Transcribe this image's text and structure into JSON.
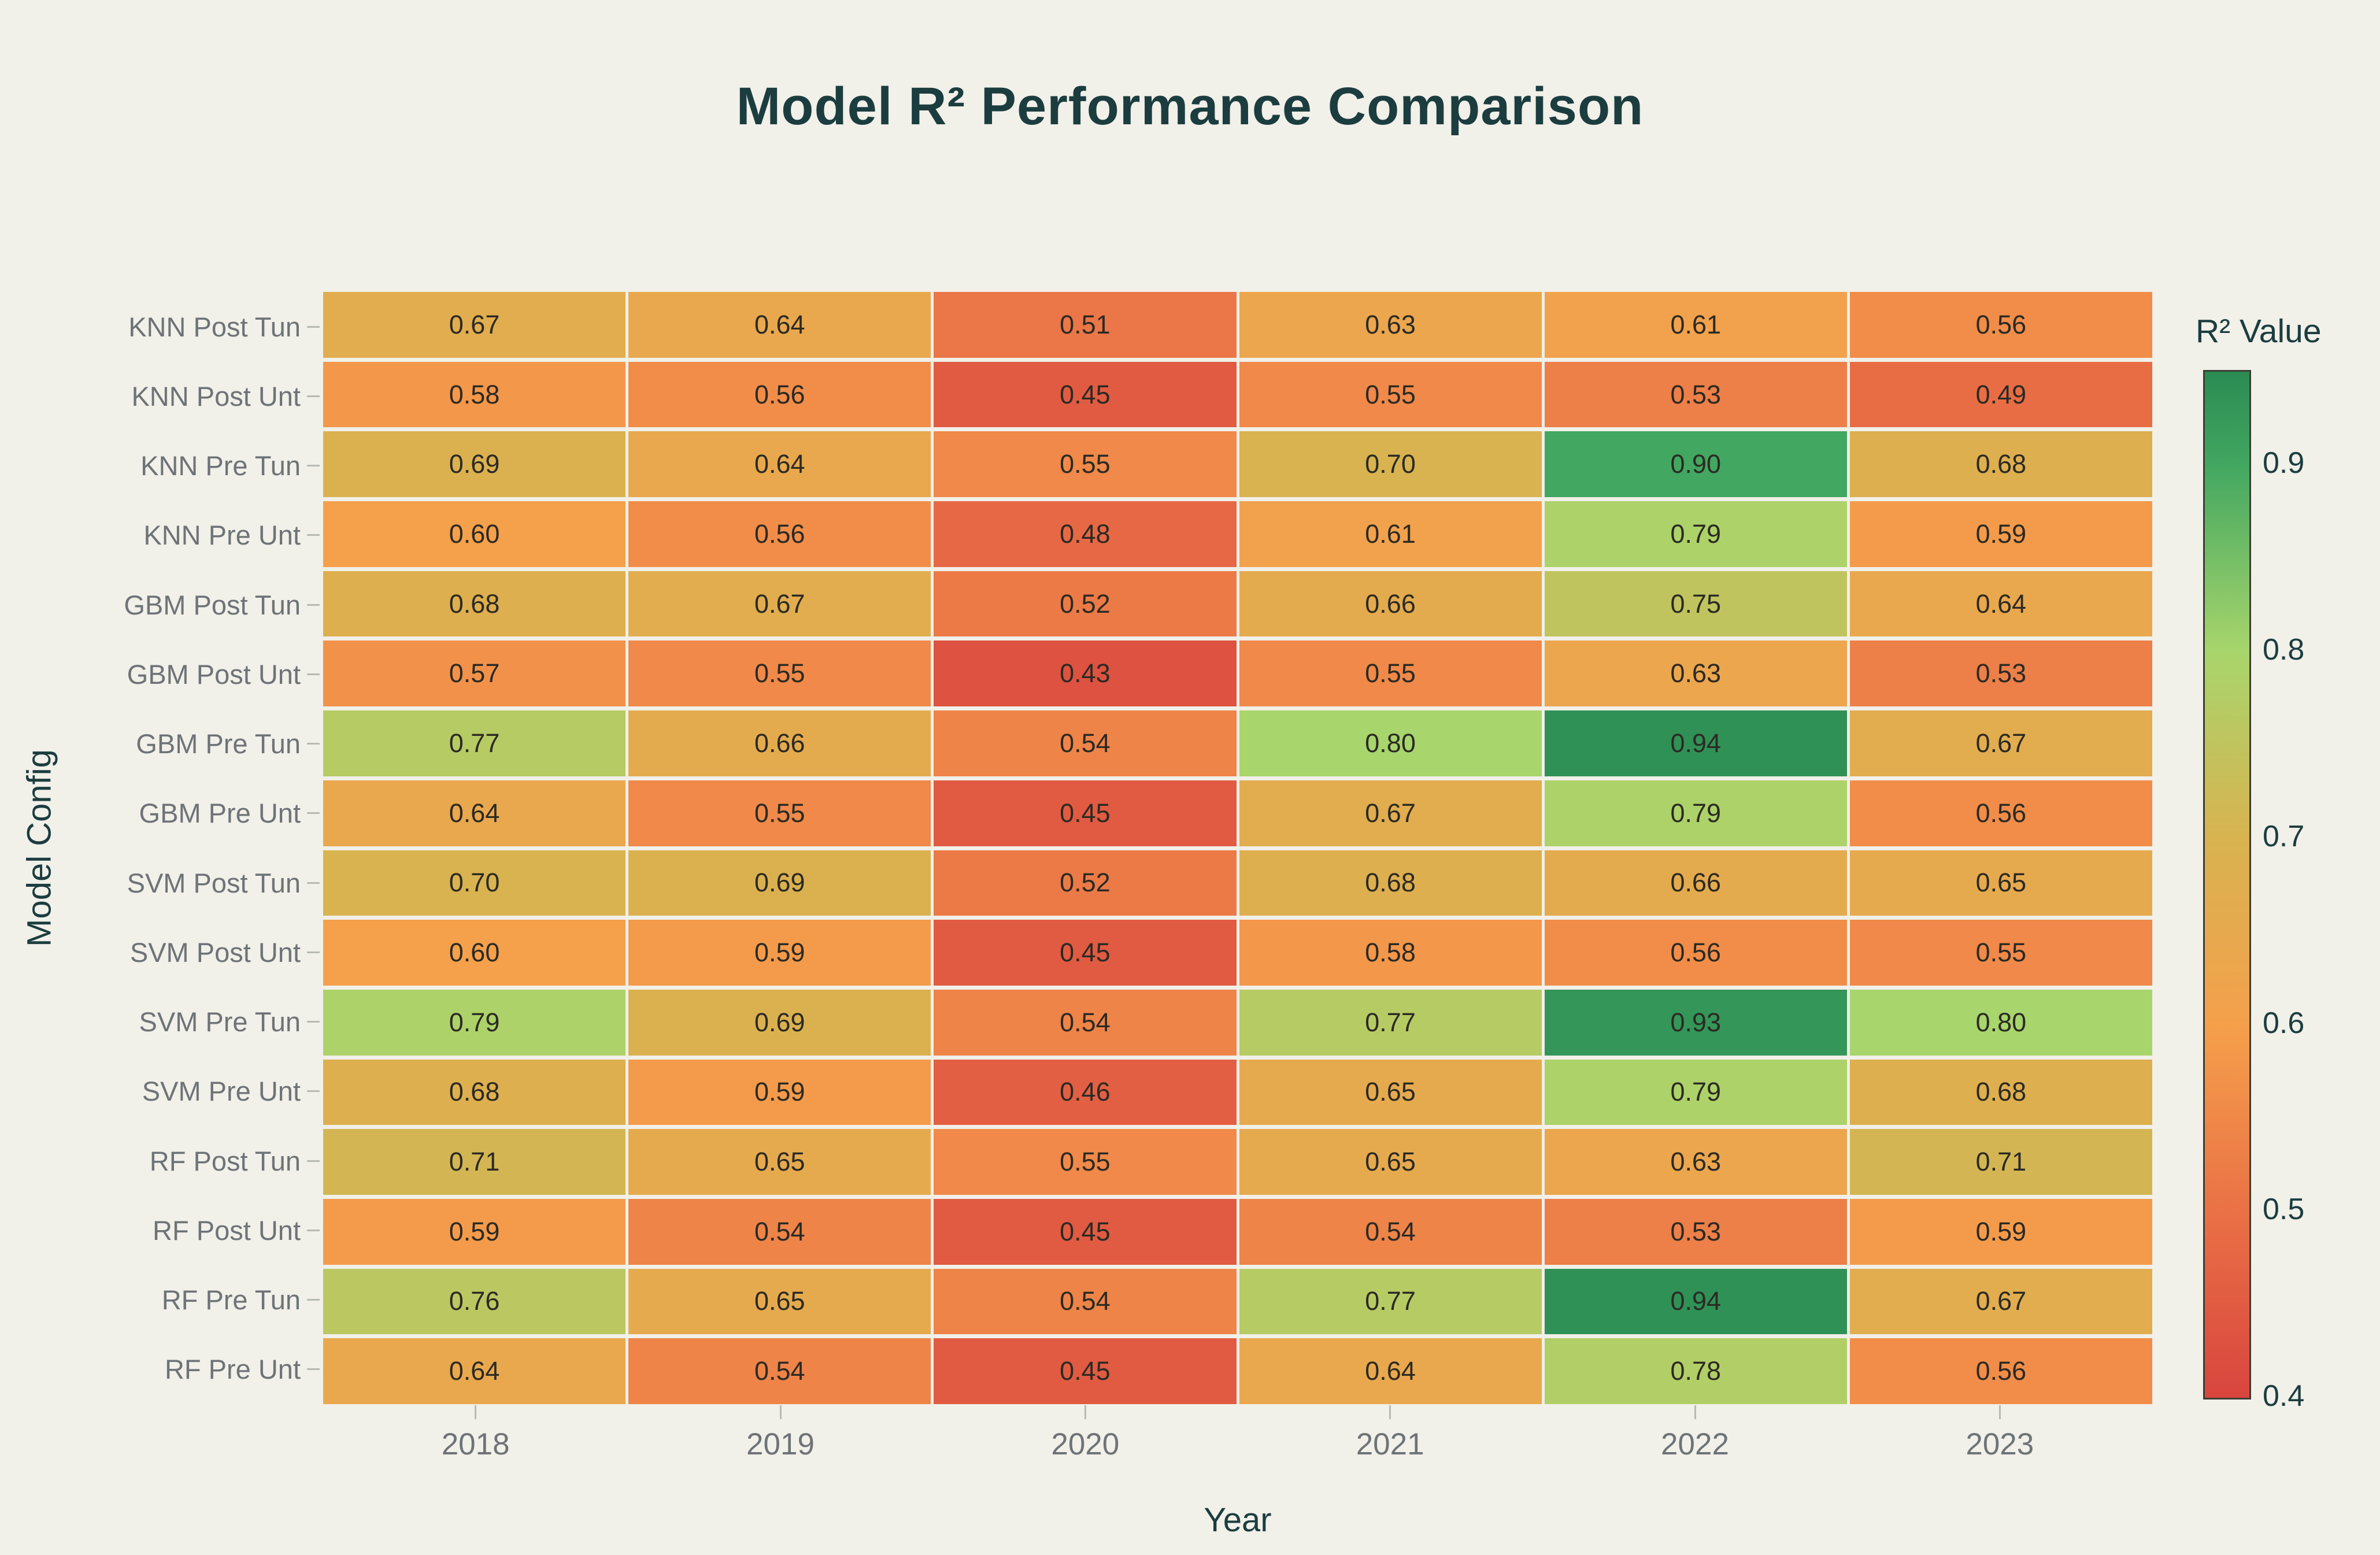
{
  "page": {
    "background": "#f1f0e9"
  },
  "chart_data": {
    "type": "heatmap",
    "title": "Model R² Performance Comparison",
    "xlabel": "Year",
    "ylabel": "Model Config",
    "x_categories": [
      "2018",
      "2019",
      "2020",
      "2021",
      "2022",
      "2023"
    ],
    "y_categories": [
      "KNN Post Tun",
      "KNN Post Unt",
      "KNN Pre Tun",
      "KNN Pre Unt",
      "GBM Post Tun",
      "GBM Post Unt",
      "GBM Pre Tun",
      "GBM Pre Unt",
      "SVM Post Tun",
      "SVM Post Unt",
      "SVM Pre Tun",
      "SVM Pre Unt",
      "RF Post Tun",
      "RF Post Unt",
      "RF Pre Tun",
      "RF Pre Unt"
    ],
    "values": [
      [
        0.67,
        0.64,
        0.51,
        0.63,
        0.61,
        0.56
      ],
      [
        0.58,
        0.56,
        0.45,
        0.55,
        0.53,
        0.49
      ],
      [
        0.69,
        0.64,
        0.55,
        0.7,
        0.9,
        0.68
      ],
      [
        0.6,
        0.56,
        0.48,
        0.61,
        0.79,
        0.59
      ],
      [
        0.68,
        0.67,
        0.52,
        0.66,
        0.75,
        0.64
      ],
      [
        0.57,
        0.55,
        0.43,
        0.55,
        0.63,
        0.53
      ],
      [
        0.77,
        0.66,
        0.54,
        0.8,
        0.94,
        0.67
      ],
      [
        0.64,
        0.55,
        0.45,
        0.67,
        0.79,
        0.56
      ],
      [
        0.7,
        0.69,
        0.52,
        0.68,
        0.66,
        0.65
      ],
      [
        0.6,
        0.59,
        0.45,
        0.58,
        0.56,
        0.55
      ],
      [
        0.79,
        0.69,
        0.54,
        0.77,
        0.93,
        0.8
      ],
      [
        0.68,
        0.59,
        0.46,
        0.65,
        0.79,
        0.68
      ],
      [
        0.71,
        0.65,
        0.55,
        0.65,
        0.63,
        0.71
      ],
      [
        0.59,
        0.54,
        0.45,
        0.54,
        0.53,
        0.59
      ],
      [
        0.76,
        0.65,
        0.54,
        0.77,
        0.94,
        0.67
      ],
      [
        0.64,
        0.54,
        0.45,
        0.64,
        0.78,
        0.56
      ]
    ],
    "value_decimals": 2,
    "grid": false,
    "colorbar": {
      "title": "R² Value",
      "min": 0.4,
      "max": 0.95,
      "tick_values": [
        0.9,
        0.8,
        0.7,
        0.6,
        0.5,
        0.4
      ],
      "position": "right"
    },
    "color_stops": [
      [
        0.4,
        "#d8453e"
      ],
      [
        0.5,
        "#ea7146"
      ],
      [
        0.6,
        "#f5a04b"
      ],
      [
        0.7,
        "#d8b350"
      ],
      [
        0.8,
        "#a8d56c"
      ],
      [
        0.9,
        "#42a761"
      ],
      [
        0.95,
        "#2b8b53"
      ]
    ],
    "colors": {
      "title_text": "#1c3d3f",
      "axis_title_text": "#1c3d3f",
      "tick_label_text": "#6e7377",
      "cell_text": "#2b2a23",
      "colorbar_border": "#3d3d34"
    }
  }
}
